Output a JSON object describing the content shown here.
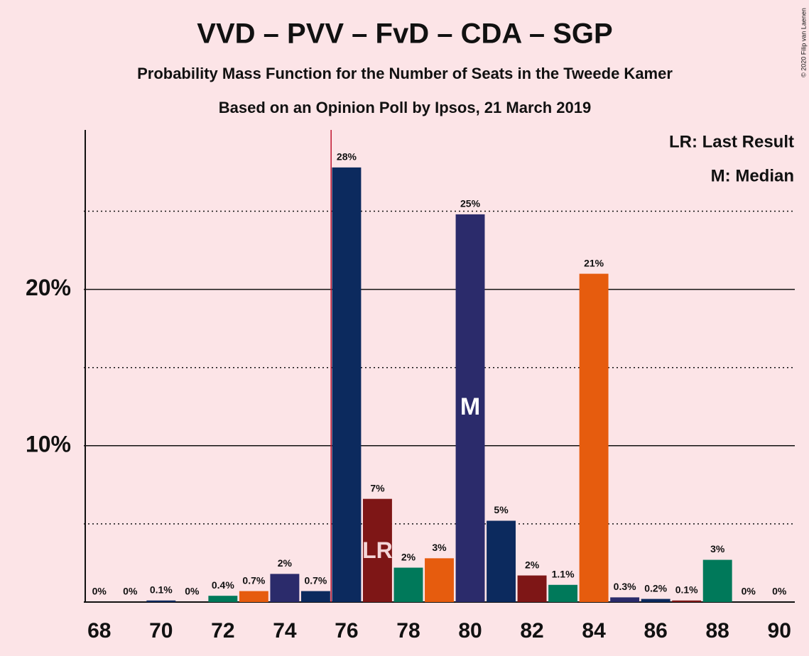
{
  "chart_data": {
    "type": "bar",
    "title": "VVD – PVV – FvD – CDA – SGP",
    "subtitle": "Probability Mass Function for the Number of Seats in the Tweede Kamer",
    "subtitle2": "Based on an Opinion Poll by Ipsos, 21 March 2019",
    "credit": "© 2020 Filip van Laenen",
    "x": [
      68,
      69,
      70,
      71,
      72,
      73,
      74,
      75,
      76,
      77,
      78,
      79,
      80,
      81,
      82,
      83,
      84,
      85,
      86,
      87,
      88,
      89,
      90
    ],
    "values": [
      0,
      0,
      0.1,
      0,
      0.4,
      0.7,
      1.8,
      0.7,
      27.8,
      6.6,
      2.2,
      2.8,
      24.8,
      5.2,
      1.7,
      1.1,
      21.0,
      0.3,
      0.2,
      0.1,
      2.7,
      0,
      0
    ],
    "value_labels": [
      "0%",
      "0%",
      "0.1%",
      "0%",
      "0.4%",
      "0.7%",
      "2%",
      "0.7%",
      "28%",
      "7%",
      "2%",
      "3%",
      "25%",
      "5%",
      "2%",
      "1.1%",
      "21%",
      "0.3%",
      "0.2%",
      "0.1%",
      "3%",
      "0%",
      "0%"
    ],
    "colors": [
      "#e65c0e",
      "#2b2b6b",
      "#0c2a5e",
      "#7e1616",
      "#00795a",
      "#e65c0e",
      "#2b2b6b",
      "#0c2a5e",
      "#0c2a5e",
      "#7e1616",
      "#00795a",
      "#e65c0e",
      "#2b2b6b",
      "#0c2a5e",
      "#7e1616",
      "#00795a",
      "#e65c0e",
      "#2b2b6b",
      "#0c2a5e",
      "#7e1616",
      "#00795a",
      "#e65c0e",
      "#2b2b6b"
    ],
    "xlim": [
      67.5,
      90.5
    ],
    "xticks": [
      68,
      70,
      72,
      74,
      76,
      78,
      80,
      82,
      84,
      86,
      88,
      90
    ],
    "ylim": [
      0,
      30.2
    ],
    "yticks": [
      {
        "value": 10,
        "label": "10%"
      },
      {
        "value": 20,
        "label": "20%"
      }
    ],
    "minor_yticks": [
      5,
      15,
      25
    ],
    "majority": 76,
    "majority_color": "#c0132e",
    "median": {
      "x": 80,
      "label": "M"
    },
    "last_result": {
      "x": 77,
      "label": "LR"
    },
    "legend": [
      "LR: Last Result",
      "M: Median"
    ]
  }
}
